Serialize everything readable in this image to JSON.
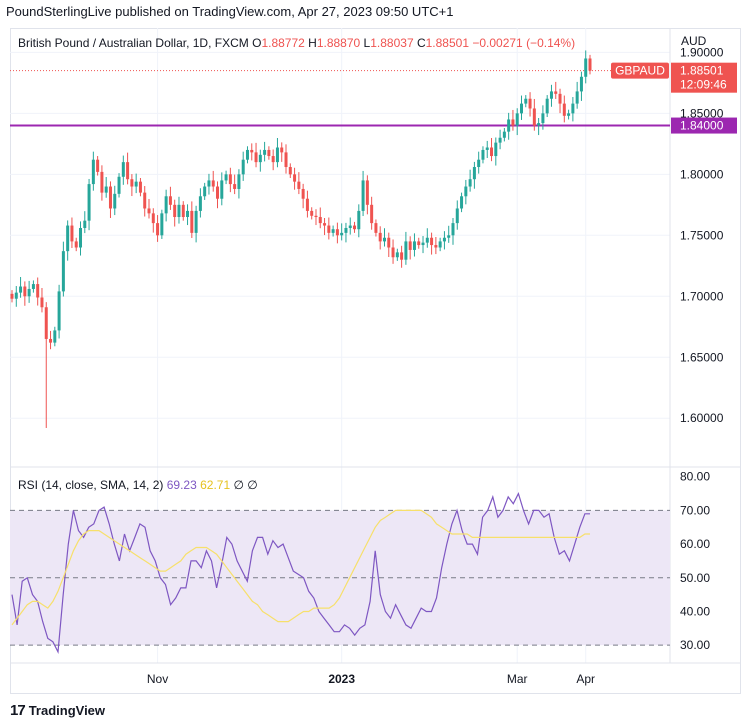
{
  "header": {
    "text": "PoundSterlingLive published on TradingView.com, Apr 27, 2023 09:50 UTC+1"
  },
  "legend": {
    "title": "British Pound / Australian Dollar, 1D, FXCM",
    "o_label": "O",
    "o_value": "1.88772",
    "h_label": "H",
    "h_value": "1.88870",
    "l_label": "L",
    "l_value": "1.88037",
    "c_label": "C",
    "c_value": "1.88501",
    "change": "−0.00271 (−0.14%)"
  },
  "rsi_legend": {
    "title": "RSI (14, close, SMA, 14, 2)",
    "rsi_value": "69.23",
    "sma_value": "62.71",
    "extra": "∅  ∅"
  },
  "currency": "AUD",
  "price_badge": {
    "symbol": "GBPAUD",
    "price": "1.88501",
    "countdown": "12:09:46"
  },
  "line_badge": {
    "price": "1.84000"
  },
  "footer": {
    "brand": "TradingView"
  },
  "colors": {
    "up": "#26a69a",
    "down": "#ef5350",
    "level": "#9c27b0",
    "rsi": "#7e57c2",
    "sma": "#f7e06b",
    "band": "#ede7f6"
  },
  "chart_data": [
    {
      "type": "candlestick",
      "title": "British Pound / Australian Dollar, 1D, FXCM",
      "ylim": [
        1.56,
        1.92
      ],
      "y_ticks": [
        "1.90000",
        "1.85000",
        "1.80000",
        "1.75000",
        "1.70000",
        "1.65000",
        "1.60000"
      ],
      "x_ticks": [
        {
          "label": "Nov",
          "index": 34
        },
        {
          "label": "2023",
          "index": 77
        },
        {
          "label": "Mar",
          "index": 118
        },
        {
          "label": "Apr",
          "index": 134
        }
      ],
      "horizontal_line": 1.84,
      "close_series_approx": [
        1.698,
        1.703,
        1.708,
        1.7,
        1.706,
        1.71,
        1.699,
        1.691,
        1.665,
        1.662,
        1.672,
        1.704,
        1.737,
        1.758,
        1.745,
        1.74,
        1.756,
        1.762,
        1.792,
        1.812,
        1.802,
        1.785,
        1.79,
        1.772,
        1.784,
        1.798,
        1.81,
        1.796,
        1.79,
        1.794,
        1.785,
        1.772,
        1.768,
        1.76,
        1.75,
        1.768,
        1.782,
        1.775,
        1.765,
        1.775,
        1.765,
        1.77,
        1.752,
        1.77,
        1.782,
        1.79,
        1.795,
        1.79,
        1.78,
        1.795,
        1.8,
        1.792,
        1.788,
        1.8,
        1.812,
        1.82,
        1.818,
        1.81,
        1.816,
        1.82,
        1.815,
        1.81,
        1.822,
        1.818,
        1.806,
        1.8,
        1.794,
        1.788,
        1.78,
        1.77,
        1.766,
        1.765,
        1.76,
        1.758,
        1.752,
        1.755,
        1.75,
        1.752,
        1.756,
        1.758,
        1.755,
        1.77,
        1.795,
        1.775,
        1.76,
        1.752,
        1.745,
        1.748,
        1.74,
        1.732,
        1.736,
        1.73,
        1.745,
        1.738,
        1.745,
        1.742,
        1.744,
        1.748,
        1.742,
        1.74,
        1.745,
        1.748,
        1.75,
        1.76,
        1.772,
        1.782,
        1.79,
        1.796,
        1.806,
        1.812,
        1.82,
        1.822,
        1.815,
        1.826,
        1.83,
        1.835,
        1.845,
        1.84,
        1.85,
        1.858,
        1.862,
        1.854,
        1.84,
        1.842,
        1.85,
        1.862,
        1.868,
        1.866,
        1.858,
        1.848,
        1.85,
        1.858,
        1.868,
        1.88,
        1.895,
        1.885
      ]
    },
    {
      "type": "line",
      "title": "RSI (14, close, SMA, 14, 2)",
      "ylim": [
        25,
        82
      ],
      "y_ticks": [
        "80.00",
        "70.00",
        "60.00",
        "50.00",
        "40.00",
        "30.00"
      ],
      "bands": [
        30,
        50,
        70
      ],
      "series": [
        {
          "name": "RSI",
          "color": "#7e57c2",
          "values": [
            45,
            36,
            49,
            50,
            45,
            43,
            37,
            32,
            31,
            28,
            45,
            60,
            70,
            64,
            62,
            65,
            66,
            70,
            71,
            66,
            60,
            55,
            63,
            58,
            62,
            66,
            65,
            58,
            55,
            50,
            48,
            42,
            44,
            47,
            47,
            55,
            55,
            53,
            58,
            55,
            47,
            54,
            62,
            60,
            55,
            52,
            49,
            58,
            62,
            62,
            57,
            61,
            59,
            60,
            56,
            52,
            51,
            50,
            46,
            44,
            40,
            38,
            36,
            34,
            34,
            36,
            35,
            33,
            35,
            36,
            43,
            58,
            45,
            40,
            38,
            42,
            39,
            36,
            35,
            38,
            41,
            40,
            40,
            44,
            53,
            60,
            66,
            70,
            64,
            60,
            60,
            57,
            68,
            70,
            74,
            68,
            70,
            74,
            72,
            75,
            70,
            66,
            70,
            70,
            68,
            69,
            62,
            57,
            58,
            55,
            60,
            65,
            69,
            69
          ]
        },
        {
          "name": "SMA",
          "color": "#f7e06b",
          "values": [
            36,
            38,
            40,
            42,
            43,
            43,
            42,
            41,
            43,
            46,
            50,
            54,
            58,
            61,
            63,
            64,
            64,
            64,
            63,
            62,
            61,
            60,
            59,
            58,
            57,
            56,
            55,
            54,
            53,
            52,
            52,
            53,
            54,
            55,
            57,
            58,
            59,
            59,
            59,
            58,
            57,
            55,
            53,
            51,
            49,
            47,
            45,
            43,
            42,
            40,
            39,
            38,
            37,
            37,
            37,
            38,
            39,
            40,
            40,
            41,
            41,
            41,
            41,
            42,
            44,
            47,
            50,
            53,
            56,
            59,
            62,
            65,
            67,
            68,
            69,
            70,
            70,
            70,
            70,
            70,
            70,
            69,
            68,
            66,
            65,
            64,
            63,
            63,
            63,
            63,
            62,
            62,
            62,
            62,
            62,
            62,
            62,
            62,
            62,
            62,
            62,
            62,
            62,
            62,
            62,
            62,
            62,
            62,
            62,
            62,
            62,
            62,
            63,
            63
          ]
        }
      ]
    }
  ]
}
